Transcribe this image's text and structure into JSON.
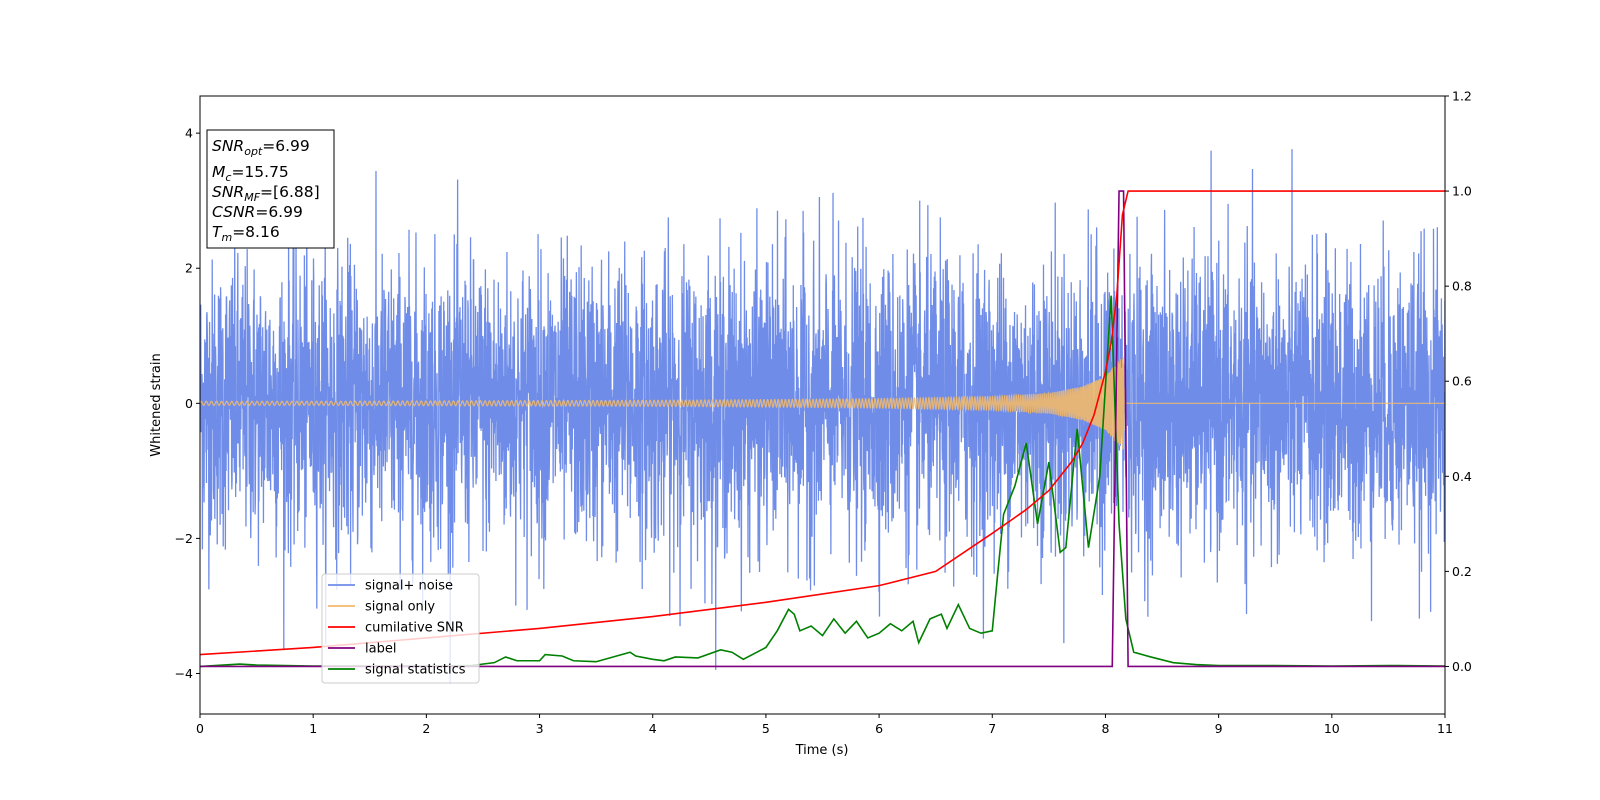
{
  "chart_data": {
    "type": "line",
    "title": "",
    "xlabel": "Time (s)",
    "ylabel": "Whitened strain",
    "xlim": [
      0,
      11
    ],
    "ylim": [
      -4.6,
      4.55
    ],
    "y2lim": [
      -0.1,
      1.2
    ],
    "x_ticks": [
      0,
      1,
      2,
      3,
      4,
      5,
      6,
      7,
      8,
      9,
      10,
      11
    ],
    "y_ticks": [
      -4,
      -2,
      0,
      2,
      4
    ],
    "y2_ticks": [
      0.0,
      0.2,
      0.4,
      0.6,
      0.8,
      1.0,
      1.2
    ],
    "y2_tick_labels": [
      "0.0",
      "0.2",
      "0.4",
      "0.6",
      "0.8",
      "1.0",
      "1.2"
    ],
    "grid": false,
    "legend_position": "lower-left",
    "colors": {
      "signal_noise": "#6f8de8",
      "signal_only": "#f2b96b",
      "cumulative_snr": "#ff0000",
      "label": "#800080",
      "signal_statistics": "#008000"
    },
    "annotation": {
      "snr_opt": {
        "symbol": "SNR",
        "sub": "opt",
        "value": "=6.99"
      },
      "mc": {
        "symbol": "M",
        "sub": "c",
        "value": "=15.75"
      },
      "snr_mf": {
        "symbol": "SNR",
        "sub": "MF",
        "value": "=[6.88]"
      },
      "csnr": {
        "symbol": "CSNR",
        "sub": "",
        "value": "=6.99"
      },
      "tm": {
        "symbol": "T",
        "sub": "m",
        "value": "=8.16"
      }
    },
    "series": [
      {
        "name": "signal+ noise",
        "axis": "left",
        "description": "whitened noise, std ~1, peaks to about ±4",
        "amplitude_range": [
          -4.15,
          4.1
        ]
      },
      {
        "name": "signal only",
        "axis": "left",
        "x": [
          0,
          1,
          2,
          3,
          4,
          5,
          6,
          7,
          7.5,
          7.8,
          8.0,
          8.1,
          8.16,
          8.17,
          11
        ],
        "envelope": [
          0.03,
          0.03,
          0.035,
          0.04,
          0.045,
          0.055,
          0.07,
          0.1,
          0.15,
          0.25,
          0.4,
          0.6,
          0.7,
          0,
          0
        ]
      },
      {
        "name": "cumilative SNR",
        "axis": "right",
        "x": [
          0,
          1,
          2,
          3,
          4,
          5,
          6,
          6.5,
          7,
          7.3,
          7.5,
          7.7,
          7.8,
          7.9,
          8.0,
          8.05,
          8.1,
          8.15,
          8.2,
          11
        ],
        "y": [
          0.025,
          0.04,
          0.06,
          0.08,
          0.105,
          0.135,
          0.17,
          0.2,
          0.28,
          0.33,
          0.37,
          0.43,
          0.47,
          0.53,
          0.62,
          0.68,
          0.78,
          0.95,
          1.0,
          1.0
        ]
      },
      {
        "name": "label",
        "axis": "right",
        "x": [
          0,
          8.06,
          8.12,
          8.16,
          8.2,
          11
        ],
        "y": [
          0,
          0,
          1.0,
          1.0,
          0,
          0
        ]
      },
      {
        "name": "signal statistics",
        "axis": "right",
        "x": [
          0,
          0.35,
          0.5,
          1.0,
          1.5,
          2.0,
          2.4,
          2.6,
          2.7,
          2.8,
          3.0,
          3.05,
          3.2,
          3.3,
          3.5,
          3.8,
          3.85,
          4.0,
          4.1,
          4.2,
          4.4,
          4.6,
          4.7,
          4.8,
          5.0,
          5.1,
          5.2,
          5.25,
          5.3,
          5.4,
          5.5,
          5.6,
          5.7,
          5.8,
          5.9,
          6.0,
          6.1,
          6.2,
          6.3,
          6.35,
          6.45,
          6.55,
          6.6,
          6.7,
          6.8,
          6.9,
          7.0,
          7.05,
          7.1,
          7.2,
          7.3,
          7.4,
          7.5,
          7.6,
          7.65,
          7.75,
          7.85,
          7.95,
          8.05,
          8.12,
          8.18,
          8.25,
          8.4,
          8.6,
          8.8,
          9.0,
          9.5,
          10.0,
          10.5,
          11.0
        ],
        "y": [
          0.0,
          0.005,
          0.003,
          0.001,
          0.001,
          0.001,
          0.002,
          0.008,
          0.02,
          0.012,
          0.012,
          0.025,
          0.022,
          0.012,
          0.01,
          0.03,
          0.022,
          0.015,
          0.012,
          0.02,
          0.018,
          0.035,
          0.03,
          0.015,
          0.04,
          0.075,
          0.12,
          0.11,
          0.075,
          0.085,
          0.065,
          0.1,
          0.07,
          0.095,
          0.06,
          0.07,
          0.09,
          0.075,
          0.095,
          0.05,
          0.1,
          0.11,
          0.08,
          0.13,
          0.08,
          0.07,
          0.075,
          0.2,
          0.32,
          0.38,
          0.47,
          0.3,
          0.43,
          0.24,
          0.25,
          0.5,
          0.25,
          0.4,
          0.78,
          0.3,
          0.1,
          0.03,
          0.02,
          0.008,
          0.004,
          0.002,
          0.002,
          0.001,
          0.002,
          0.001
        ]
      }
    ]
  }
}
